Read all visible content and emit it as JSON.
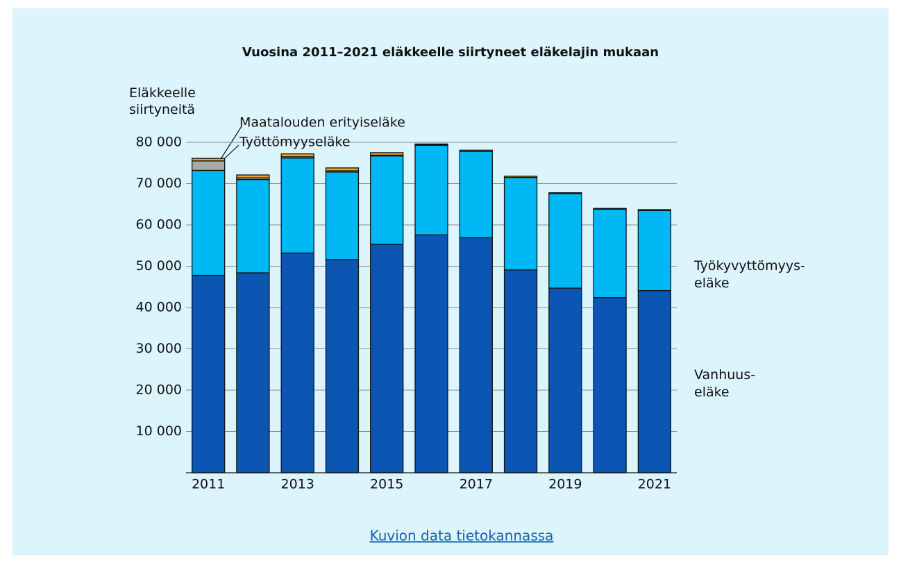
{
  "chart_data": {
    "type": "stacked_bar",
    "title": "Vuosina 2011–2021 eläkkeelle siirtyneet eläkelajin mukaan",
    "y_label": "Eläkkeelle\nsiirtyneitä",
    "categories": [
      "2011",
      null,
      "2013",
      null,
      "2015",
      null,
      "2017",
      null,
      "2019",
      null,
      "2021"
    ],
    "series": [
      {
        "name": "Vanhuus-\neläke",
        "color": "#0b55b3",
        "values": [
          47800,
          48400,
          53200,
          51600,
          55300,
          57600,
          56900,
          49100,
          44700,
          42400,
          44100
        ]
      },
      {
        "name": "Työkyvyttömyys-\neläke",
        "color": "#00b8f4",
        "values": [
          25400,
          22600,
          23000,
          21200,
          21400,
          21700,
          20900,
          22400,
          22900,
          21400,
          19400
        ]
      },
      {
        "name": "Työttömyyseläke",
        "color": "#a9a9a9",
        "values": [
          2300,
          400,
          300,
          300,
          200,
          100,
          0,
          0,
          0,
          0,
          0
        ]
      },
      {
        "name": "Maatalouden erityiseläke",
        "color": "#f2a31f",
        "values": [
          600,
          700,
          700,
          700,
          600,
          200,
          300,
          300,
          200,
          200,
          200
        ]
      }
    ],
    "ylim": [
      0,
      80000
    ],
    "yticks": [
      {
        "value": 10000,
        "label": "10 000"
      },
      {
        "value": 20000,
        "label": "20 000"
      },
      {
        "value": 30000,
        "label": "30 000"
      },
      {
        "value": 40000,
        "label": "40 000"
      },
      {
        "value": 50000,
        "label": "50 000"
      },
      {
        "value": 60000,
        "label": "60 000"
      },
      {
        "value": 70000,
        "label": "70 000"
      },
      {
        "value": 80000,
        "label": "80 000"
      }
    ],
    "grid": true
  },
  "link": "Kuvion data tietokannassa"
}
